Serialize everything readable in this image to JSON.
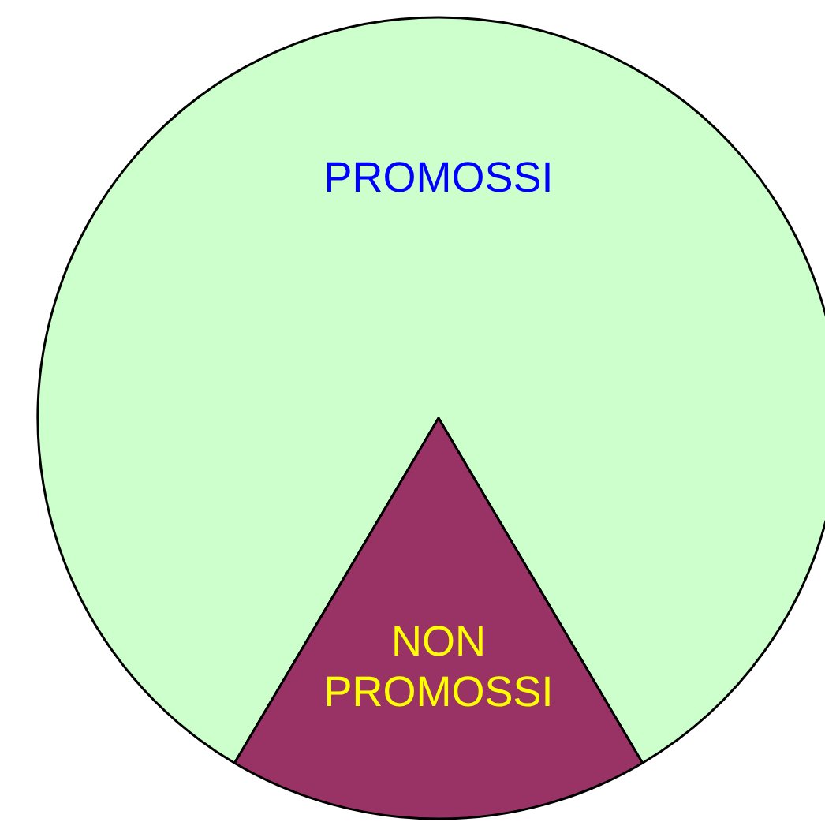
{
  "chart_data": {
    "type": "pie",
    "categories": [
      "PROMOSSI",
      "NON PROMOSSI"
    ],
    "values": [
      83,
      17
    ],
    "colors": [
      "#ccffcc",
      "#993366"
    ]
  }
}
